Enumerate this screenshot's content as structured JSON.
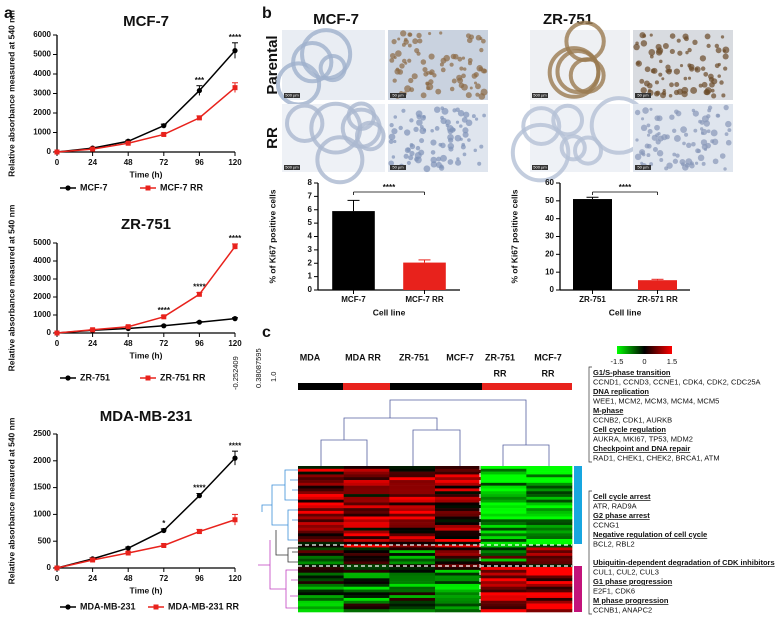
{
  "panel_labels": [
    "a",
    "b",
    "c"
  ],
  "chart_data": [
    {
      "type": "line",
      "title": "MCF-7",
      "ylabel": "Relative absorbance measured at 540 nm",
      "xlabel": "Time (h)",
      "x": [
        0,
        24,
        48,
        72,
        96,
        120
      ],
      "xlim": [
        0,
        120
      ],
      "xticks": [
        0,
        24,
        48,
        72,
        96,
        120
      ],
      "ylim": [
        0,
        6000
      ],
      "yticks": [
        0,
        1000,
        2000,
        3000,
        4000,
        5000,
        6000
      ],
      "series": [
        {
          "name": "MCF-7",
          "color": "#000000",
          "marker": "circle",
          "values": [
            0,
            200,
            550,
            1350,
            3150,
            5200
          ],
          "errors": [
            20,
            30,
            50,
            80,
            250,
            400
          ]
        },
        {
          "name": "MCF-7 RR",
          "color": "#e8221c",
          "marker": "square",
          "values": [
            0,
            150,
            450,
            900,
            1750,
            3300
          ],
          "errors": [
            20,
            30,
            40,
            60,
            100,
            250
          ]
        }
      ],
      "annotations": [
        {
          "x": 96,
          "text": "***"
        },
        {
          "x": 120,
          "text": "****"
        }
      ]
    },
    {
      "type": "line",
      "title": "ZR-751",
      "ylabel": "Relative absorbance measured at 540 nm",
      "xlabel": "Time (h)",
      "x": [
        0,
        24,
        48,
        72,
        96,
        120
      ],
      "xlim": [
        0,
        120
      ],
      "xticks": [
        0,
        24,
        48,
        72,
        96,
        120
      ],
      "ylim": [
        0,
        5000
      ],
      "yticks": [
        0,
        1000,
        2000,
        3000,
        4000,
        5000
      ],
      "series": [
        {
          "name": "ZR-751",
          "color": "#000000",
          "marker": "circle",
          "values": [
            0,
            150,
            250,
            400,
            600,
            800
          ],
          "errors": [
            20,
            20,
            30,
            30,
            40,
            50
          ]
        },
        {
          "name": "ZR-751 RR",
          "color": "#e8221c",
          "marker": "square",
          "values": [
            0,
            180,
            350,
            900,
            2150,
            4800
          ],
          "errors": [
            20,
            30,
            40,
            60,
            100,
            150
          ]
        }
      ],
      "annotations": [
        {
          "x": 72,
          "text": "****"
        },
        {
          "x": 96,
          "text": "****"
        },
        {
          "x": 120,
          "text": "****"
        }
      ]
    },
    {
      "type": "line",
      "title": "MDA-MB-231",
      "ylabel": "Relative absorbance measured at 540 nm",
      "xlabel": "Time (h)",
      "x": [
        0,
        24,
        48,
        72,
        96,
        120
      ],
      "xlim": [
        0,
        120
      ],
      "xticks": [
        0,
        24,
        48,
        72,
        96,
        120
      ],
      "ylim": [
        0,
        2500
      ],
      "yticks": [
        0,
        500,
        1000,
        1500,
        2000,
        2500
      ],
      "series": [
        {
          "name": "MDA-MB-231",
          "color": "#000000",
          "marker": "circle",
          "values": [
            0,
            170,
            370,
            700,
            1350,
            2050
          ],
          "errors": [
            10,
            20,
            20,
            30,
            40,
            130
          ]
        },
        {
          "name": "MDA-MB-231 RR",
          "color": "#e8221c",
          "marker": "square",
          "values": [
            0,
            150,
            280,
            420,
            680,
            900
          ],
          "errors": [
            10,
            20,
            20,
            30,
            40,
            100
          ]
        }
      ],
      "annotations": [
        {
          "x": 72,
          "text": "*"
        },
        {
          "x": 96,
          "text": "****"
        },
        {
          "x": 120,
          "text": "****"
        }
      ]
    },
    {
      "type": "bar",
      "ylabel": "% of Ki67 positive cells",
      "xlabel": "Cell line",
      "categories": [
        "MCF-7",
        "MCF-7 RR"
      ],
      "values": [
        5.9,
        2.05
      ],
      "errors": [
        0.8,
        0.2
      ],
      "colors": [
        "#000000",
        "#e8221c"
      ],
      "ylim": [
        0,
        8
      ],
      "yticks": [
        0,
        1,
        2,
        3,
        4,
        5,
        6,
        7,
        8
      ],
      "annotation": "****"
    },
    {
      "type": "bar",
      "ylabel": "% of Ki67 positive cells",
      "xlabel": "Cell line",
      "categories": [
        "ZR-751",
        "ZR-571 RR"
      ],
      "values": [
        51,
        5.5
      ],
      "errors": [
        1,
        0.5
      ],
      "colors": [
        "#000000",
        "#e8221c"
      ],
      "ylim": [
        0,
        60
      ],
      "yticks": [
        0,
        10,
        20,
        30,
        40,
        50,
        60
      ],
      "annotation": "****"
    }
  ],
  "micrographs": {
    "columns": [
      "MCF-7",
      "ZR-751"
    ],
    "rows": [
      "Parental",
      "RR"
    ],
    "scale_labels": [
      "500 µm",
      "50 µm"
    ]
  },
  "heatmap": {
    "column_labels": [
      [
        "MDA"
      ],
      [
        "MDA RR"
      ],
      [
        "ZR-751"
      ],
      [
        "MCF-7"
      ],
      [
        "ZR-751",
        "RR"
      ],
      [
        "MCF-7",
        "RR"
      ]
    ],
    "color_key": {
      "range": [
        -1.5,
        1.5
      ],
      "ticks": [
        -1.5,
        0,
        1.5
      ]
    },
    "dendrogram_scale": [
      "-0.252409",
      "0.38087595",
      "1.0"
    ],
    "gene_groups": [
      [
        {
          "heading": "G1/S-phase transition",
          "genes": "CCND1, CCND3, CCNE1, CDK4, CDK2, CDC25A"
        },
        {
          "heading": "DNA replication",
          "genes": "WEE1, MCM2, MCM3, MCM4, MCM5"
        },
        {
          "heading": "M-phase",
          "genes": "CCNB2, CDK1, AURKB"
        },
        {
          "heading": "Cell cycle regulation",
          "genes": "AUKRA, MKI67, TP53, MDM2"
        },
        {
          "heading": "Checkpoint and DNA repair",
          "genes": "RAD1, CHEK1, CHEK2, BRCA1, ATM"
        }
      ],
      [
        {
          "heading": "Cell cycle arrest",
          "genes": "ATR, RAD9A"
        },
        {
          "heading": "G2 phase arrest",
          "genes": "CCNG1"
        },
        {
          "heading": "Negative regulation of cell cycle",
          "genes": "BCL2, RBL2"
        },
        {
          "heading": "Ubiquitin-dependent degradation of CDK inhibitors",
          "genes": "CUL1, CUL2, CUL3"
        },
        {
          "heading": "G1 phase progression",
          "genes": "E2F1, CDK6"
        },
        {
          "heading": "M phase progression",
          "genes": "CCNB1, ANAPC2"
        }
      ]
    ]
  }
}
